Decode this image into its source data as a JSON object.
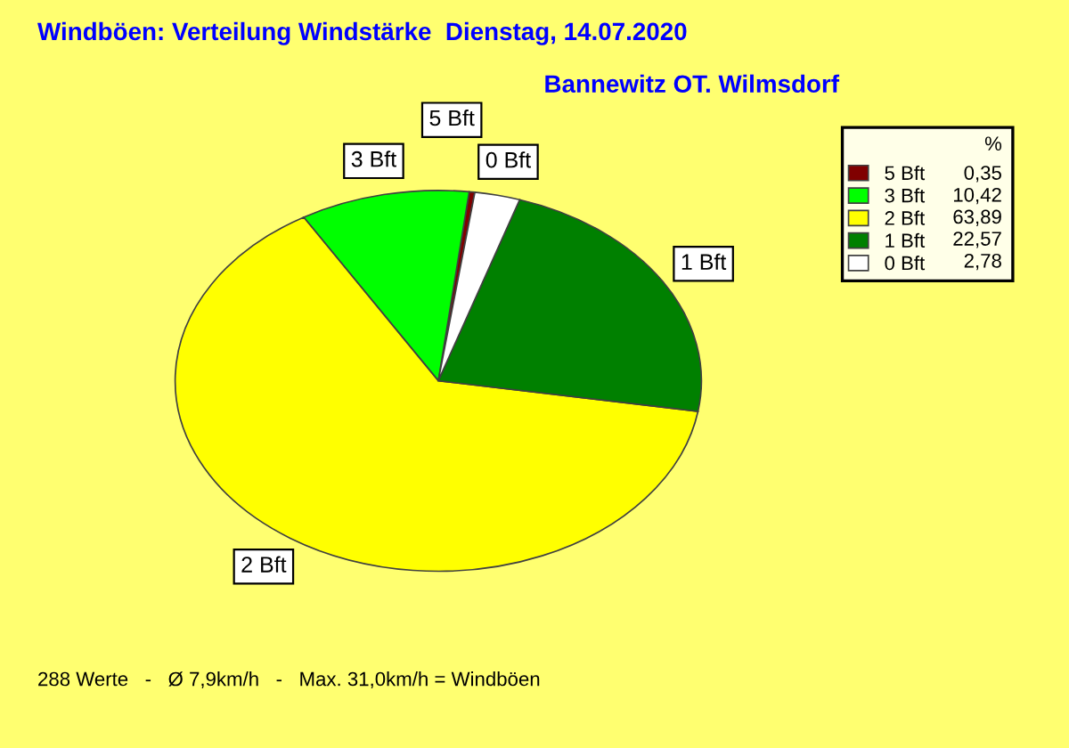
{
  "chart_data": {
    "type": "pie",
    "title": "Windböen: Verteilung Windstärke  Dienstag, 14.07.2020",
    "subtitle": "Bannewitz OT. Wilmsdorf",
    "categories": [
      "5 Bft",
      "3 Bft",
      "2 Bft",
      "1 Bft",
      "0 Bft"
    ],
    "values": [
      0.35,
      10.42,
      63.89,
      22.57,
      2.78
    ],
    "value_labels": [
      "0,35",
      "10,42",
      "63,89",
      "22,57",
      "2,78"
    ],
    "colors": [
      "#800000",
      "#00ff00",
      "#ffff00",
      "#008000",
      "#ffffff"
    ],
    "legend": "top right",
    "legend_title": "%",
    "annotations": [
      "288 Werte   -   Ø 7,9km/h   -   Max. 31,0km/h = Windböen"
    ]
  }
}
